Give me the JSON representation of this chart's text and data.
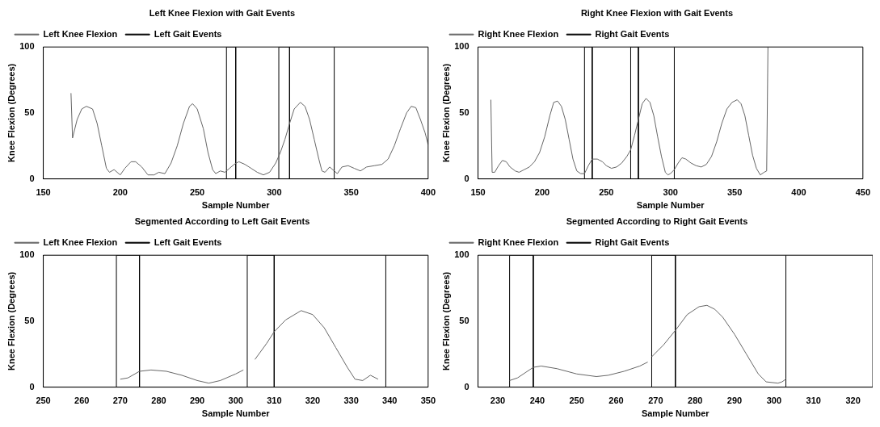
{
  "chart_data": [
    {
      "type": "line",
      "title": "Left Knee Flexion with Gait Events",
      "xlabel": "Sample Number",
      "ylabel": "Knee Flexion (Degrees)",
      "xlim": [
        150,
        400
      ],
      "xticks": [
        150,
        200,
        250,
        300,
        350,
        400
      ],
      "ylim": [
        0,
        100
      ],
      "yticks": [
        0,
        50,
        100
      ],
      "legend": "top left",
      "grid": false,
      "series": [
        {
          "name": "Left Knee Flexion",
          "color": "#666666",
          "x": [
            168,
            169,
            172,
            175,
            178,
            182,
            185,
            188,
            191,
            193,
            196,
            200,
            203,
            207,
            210,
            214,
            218,
            222,
            225,
            229,
            233,
            237,
            241,
            245,
            247,
            250,
            254,
            257,
            260,
            262,
            265,
            268,
            271,
            274,
            277,
            281,
            285,
            289,
            293,
            297,
            301,
            304,
            307,
            310,
            313,
            317,
            320,
            323,
            326,
            329,
            331,
            333,
            336,
            339,
            341,
            344,
            348,
            352,
            356,
            360,
            365,
            370,
            374,
            378,
            382,
            386,
            389,
            392,
            395,
            398,
            400
          ],
          "values": [
            65,
            31,
            45,
            53,
            55,
            53,
            42,
            25,
            8,
            5,
            7,
            3,
            8,
            13,
            13,
            9,
            3,
            3,
            5,
            4,
            12,
            25,
            42,
            55,
            57,
            53,
            38,
            20,
            7,
            4,
            6,
            5,
            8,
            11,
            13,
            11,
            8,
            5,
            3,
            5,
            12,
            20,
            30,
            42,
            53,
            58,
            55,
            45,
            30,
            15,
            6,
            5,
            9,
            6,
            4,
            9,
            10,
            8,
            6,
            9,
            10,
            11,
            15,
            25,
            38,
            50,
            55,
            54,
            45,
            35,
            26
          ]
        },
        {
          "name": "Left Gait Events",
          "color": "#000000",
          "x": [
            269,
            269,
            275,
            275,
            303,
            303,
            310,
            310,
            339,
            339
          ],
          "values": [
            0,
            100,
            100,
            0,
            0,
            100,
            100,
            0,
            0,
            100
          ]
        }
      ]
    },
    {
      "type": "line",
      "title": "Right Knee Flexion with Gait Events",
      "xlabel": "Sample Number",
      "ylabel": "Knee Flexion (Degrees)",
      "xlim": [
        150,
        450
      ],
      "xticks": [
        150,
        200,
        250,
        300,
        350,
        400,
        450
      ],
      "ylim": [
        0,
        100
      ],
      "yticks": [
        0,
        50,
        100
      ],
      "legend": "top left",
      "grid": false,
      "series": [
        {
          "name": "Right Knee Flexion",
          "color": "#666666",
          "x": [
            160,
            161,
            163,
            166,
            169,
            172,
            175,
            179,
            182,
            186,
            190,
            194,
            198,
            202,
            206,
            209,
            212,
            215,
            218,
            221,
            224,
            227,
            230,
            233,
            236,
            239,
            243,
            247,
            250,
            254,
            258,
            262,
            266,
            269,
            272,
            275,
            278,
            281,
            284,
            287,
            290,
            293,
            296,
            298,
            300,
            303,
            306,
            309,
            312,
            316,
            320,
            324,
            328,
            332,
            336,
            340,
            344,
            348,
            352,
            355,
            358,
            361,
            364,
            367,
            370,
            373,
            375,
            376
          ],
          "values": [
            60,
            5,
            5,
            10,
            14,
            13,
            9,
            6,
            5,
            7,
            9,
            13,
            20,
            32,
            48,
            58,
            59,
            55,
            45,
            30,
            15,
            6,
            4,
            4,
            10,
            15,
            15,
            13,
            10,
            8,
            9,
            12,
            17,
            22,
            33,
            45,
            57,
            61,
            58,
            48,
            32,
            17,
            5,
            3,
            4,
            7,
            12,
            16,
            15,
            12,
            10,
            9,
            11,
            17,
            28,
            42,
            53,
            58,
            60,
            57,
            48,
            33,
            18,
            8,
            3,
            5,
            6,
            100
          ]
        },
        {
          "name": "Right Gait Events",
          "color": "#000000",
          "x": [
            233,
            233,
            239,
            239,
            269,
            269,
            275,
            275,
            303,
            303
          ],
          "values": [
            0,
            100,
            100,
            0,
            0,
            100,
            100,
            0,
            0,
            100
          ]
        }
      ]
    },
    {
      "type": "line",
      "title": "Segmented According to Left Gait Events",
      "xlabel": "Sample Number",
      "ylabel": "Knee Flexion (Degrees)",
      "xlim": [
        250,
        350
      ],
      "xticks": [
        250,
        260,
        270,
        280,
        290,
        300,
        310,
        320,
        330,
        340,
        350
      ],
      "ylim": [
        0,
        100
      ],
      "yticks": [
        0,
        50,
        100
      ],
      "legend": "top left",
      "grid": false,
      "series": [
        {
          "name": "Left Knee Flexion",
          "color": "#666666",
          "x": [
            270,
            272,
            275,
            278,
            282,
            286,
            290,
            293,
            296,
            300,
            302,
            303,
            305,
            308,
            310,
            313,
            317,
            320,
            323,
            326,
            329,
            331,
            333,
            335,
            337
          ],
          "values": [
            6,
            7,
            12,
            13,
            12,
            9,
            5,
            3,
            5,
            10,
            13,
            null,
            21,
            33,
            42,
            51,
            58,
            55,
            45,
            30,
            15,
            6,
            5,
            9,
            6
          ]
        },
        {
          "name": "Left Gait Events",
          "color": "#000000",
          "x": [
            269,
            269,
            275,
            275,
            303,
            303,
            310,
            310,
            339,
            339
          ],
          "values": [
            0,
            100,
            100,
            0,
            0,
            100,
            100,
            0,
            0,
            100
          ]
        }
      ]
    },
    {
      "type": "line",
      "title": "Segmented According to Right Gait Events",
      "xlabel": "Sample Number",
      "ylabel": "Knee Flexion (Degrees)",
      "xlim": [
        225,
        325
      ],
      "xticks": [
        230,
        240,
        250,
        260,
        270,
        280,
        290,
        300,
        310,
        320
      ],
      "ylim": [
        0,
        100
      ],
      "yticks": [
        0,
        50,
        100
      ],
      "legend": "top left",
      "grid": false,
      "series": [
        {
          "name": "Right Knee Flexion",
          "color": "#666666",
          "x": [
            233,
            235,
            237,
            239,
            241,
            245,
            250,
            255,
            258,
            262,
            266,
            268,
            268.5,
            269,
            272,
            275,
            278,
            281,
            283,
            285,
            287,
            290,
            293,
            296,
            298,
            301,
            302,
            303
          ],
          "values": [
            5,
            7,
            11,
            15,
            16,
            14,
            10,
            8,
            9,
            12,
            16,
            19,
            null,
            23,
            32,
            43,
            55,
            61,
            62,
            59,
            53,
            40,
            25,
            10,
            4,
            3,
            4,
            6
          ]
        },
        {
          "name": "Right Gait Events",
          "color": "#000000",
          "x": [
            233,
            233,
            239,
            239,
            269,
            269,
            275,
            275,
            303,
            303
          ],
          "values": [
            0,
            100,
            100,
            0,
            0,
            100,
            100,
            0,
            0,
            100
          ]
        }
      ]
    }
  ]
}
